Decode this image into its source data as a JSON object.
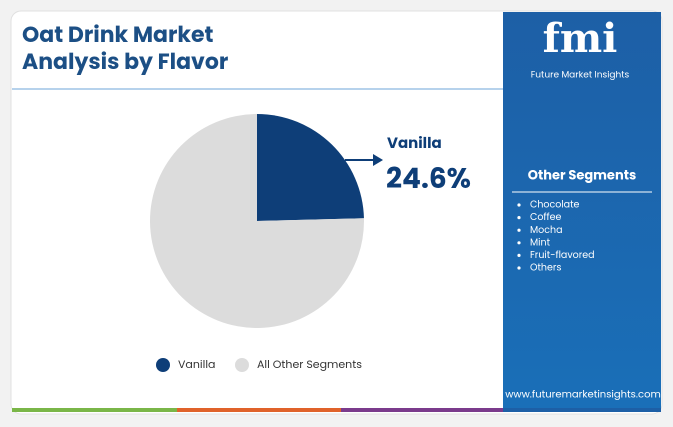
{
  "chart_data": {
    "type": "pie",
    "title": [
      "Oat Drink Market",
      "Analysis by Flavor"
    ],
    "categories": [
      "Vanilla",
      "All Other Segments"
    ],
    "values": [
      24.6,
      75.4
    ],
    "value_labels": [
      "24.6%",
      null
    ],
    "colors": [
      "#0e3e78",
      "#dcdcdc"
    ]
  },
  "sidebar": {
    "logo": "fmi",
    "brand": "Future Market Insights",
    "heading": "Other Segments",
    "items": [
      "Chocolate",
      "Coffee",
      "Mocha",
      "Mint",
      "Fruit-flavored",
      "Others"
    ],
    "url": "www.futuremarketinsights.com"
  }
}
